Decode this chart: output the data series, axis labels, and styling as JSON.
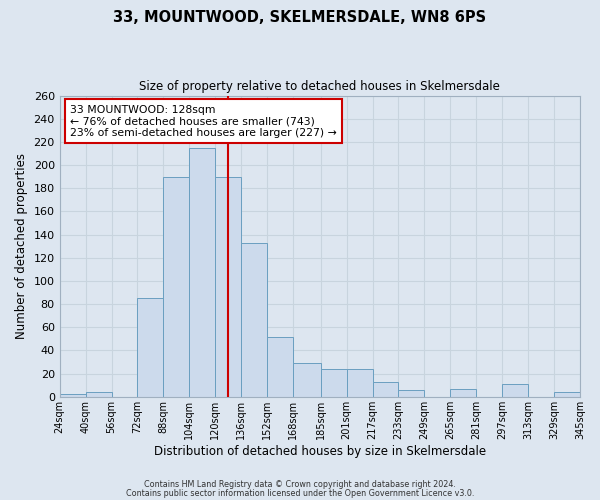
{
  "title": "33, MOUNTWOOD, SKELMERSDALE, WN8 6PS",
  "subtitle": "Size of property relative to detached houses in Skelmersdale",
  "xlabel": "Distribution of detached houses by size in Skelmersdale",
  "ylabel": "Number of detached properties",
  "bin_labels": [
    "24sqm",
    "40sqm",
    "56sqm",
    "72sqm",
    "88sqm",
    "104sqm",
    "120sqm",
    "136sqm",
    "152sqm",
    "168sqm",
    "185sqm",
    "201sqm",
    "217sqm",
    "233sqm",
    "249sqm",
    "265sqm",
    "281sqm",
    "297sqm",
    "313sqm",
    "329sqm",
    "345sqm"
  ],
  "bin_edges": [
    24,
    40,
    56,
    72,
    88,
    104,
    120,
    136,
    152,
    168,
    185,
    201,
    217,
    233,
    249,
    265,
    281,
    297,
    313,
    329,
    345
  ],
  "bar_heights": [
    2,
    4,
    0,
    85,
    190,
    215,
    190,
    133,
    52,
    29,
    24,
    24,
    13,
    6,
    0,
    7,
    0,
    11,
    0,
    4
  ],
  "bar_color": "#ccdaec",
  "bar_edge_color": "#6a9fc0",
  "property_value": 128,
  "vline_color": "#cc0000",
  "annotation_line1": "33 MOUNTWOOD: 128sqm",
  "annotation_line2": "← 76% of detached houses are smaller (743)",
  "annotation_line3": "23% of semi-detached houses are larger (227) →",
  "annotation_box_color": "#ffffff",
  "annotation_box_edge_color": "#cc0000",
  "ylim": [
    0,
    260
  ],
  "yticks": [
    0,
    20,
    40,
    60,
    80,
    100,
    120,
    140,
    160,
    180,
    200,
    220,
    240,
    260
  ],
  "grid_color": "#c8d4de",
  "background_color": "#dde6f0",
  "footnote1": "Contains HM Land Registry data © Crown copyright and database right 2024.",
  "footnote2": "Contains public sector information licensed under the Open Government Licence v3.0."
}
